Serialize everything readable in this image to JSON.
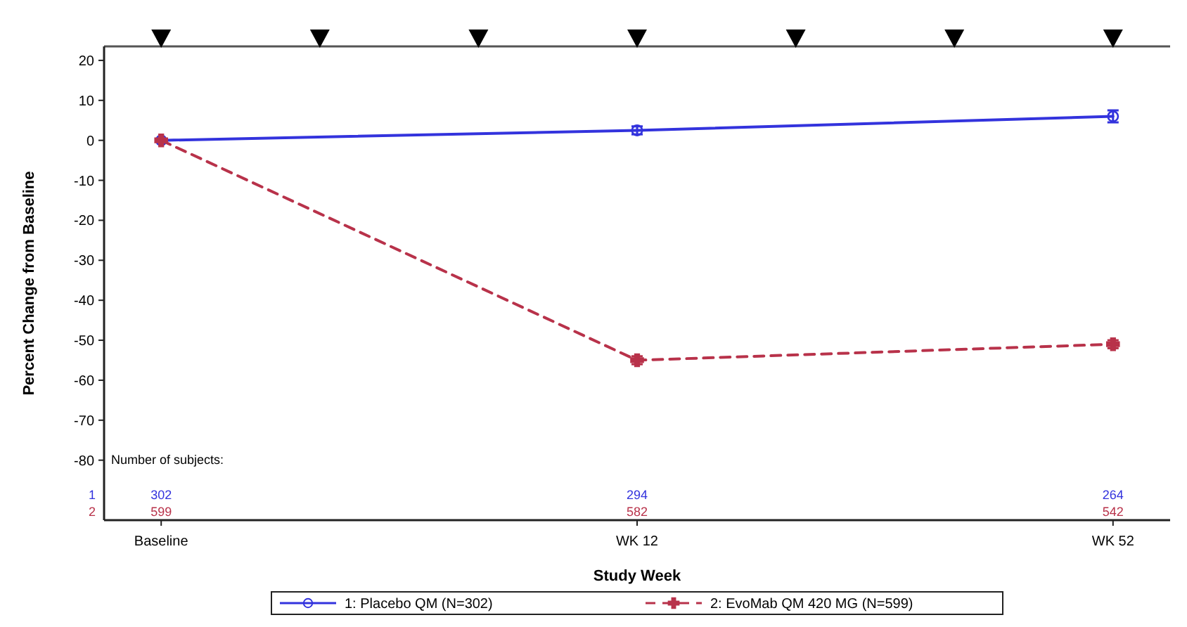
{
  "chart_data": {
    "type": "line",
    "xlabel": "Study Week",
    "ylabel": "Percent Change from Baseline",
    "categories": [
      "Baseline",
      "WK 12",
      "WK 52"
    ],
    "ylim": [
      -95,
      23.5
    ],
    "yticks": [
      -80,
      -70,
      -60,
      -50,
      -40,
      -30,
      -20,
      -10,
      0,
      10,
      20
    ],
    "series": [
      {
        "name": "1: Placebo QM (N=302)",
        "color": "#3333dd",
        "values": [
          0,
          2.5,
          6
        ],
        "errors": [
          null,
          1,
          1.5
        ],
        "marker": "circle",
        "line_style": "solid"
      },
      {
        "name": "2: EvoMab QM 420 MG (N=599)",
        "color": "#b8324a",
        "values": [
          0,
          -55,
          -51
        ],
        "errors": [
          null,
          1,
          1
        ],
        "marker": "cross",
        "line_style": "dashed"
      }
    ],
    "annotations": [
      "Number of subjects:",
      "1",
      "2",
      "302",
      "599",
      "294",
      "582",
      "264",
      "542"
    ],
    "legend": "bottom",
    "grid": false
  }
}
